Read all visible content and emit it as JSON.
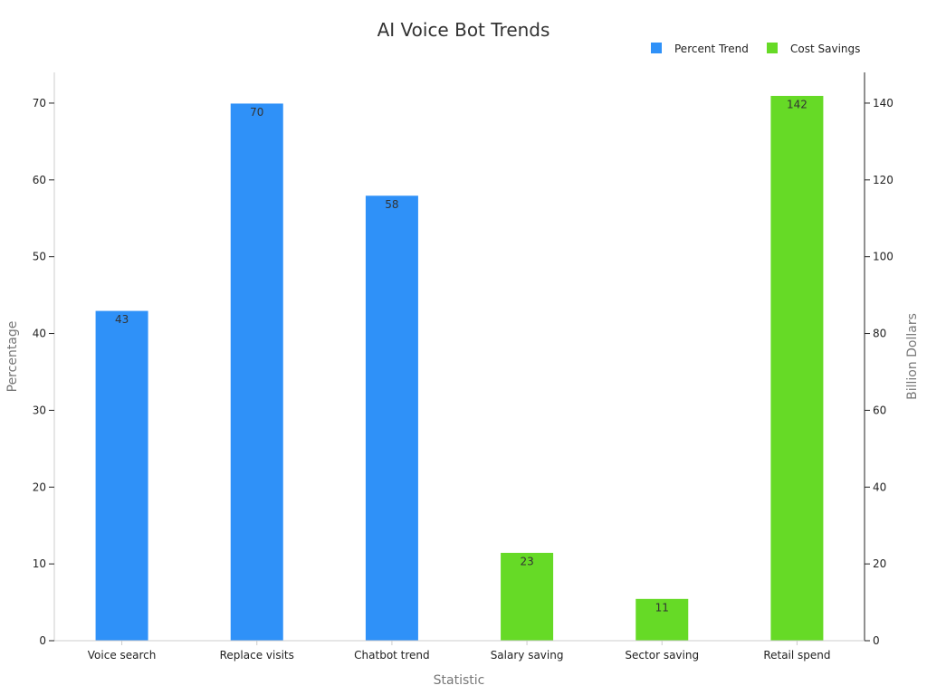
{
  "chart_data": {
    "type": "bar",
    "title": "AI Voice Bot Trends",
    "xlabel": "Statistic",
    "ylabel": "Percentage",
    "y2label": "Billion Dollars",
    "categories": [
      "Voice search",
      "Replace visits",
      "Chatbot trend",
      "Salary saving",
      "Sector saving",
      "Retail spend"
    ],
    "ylim": [
      0,
      74
    ],
    "y2lim": [
      0,
      148
    ],
    "yticks": [
      0,
      10,
      20,
      30,
      40,
      50,
      60,
      70
    ],
    "y2ticks": [
      0,
      20,
      40,
      60,
      80,
      100,
      120,
      140
    ],
    "legend_position": "top-right",
    "grid": false,
    "series": [
      {
        "name": "Percent Trend",
        "axis": "left",
        "color": "#2f91f8",
        "values": [
          43,
          70,
          58,
          null,
          null,
          null
        ],
        "labels": [
          "43",
          "70",
          "58",
          "",
          "",
          ""
        ]
      },
      {
        "name": "Cost Savings",
        "axis": "right",
        "color": "#66da26",
        "values": [
          null,
          null,
          null,
          23,
          11,
          142
        ],
        "labels": [
          "",
          "",
          "",
          "23",
          "11",
          "142"
        ]
      }
    ]
  }
}
